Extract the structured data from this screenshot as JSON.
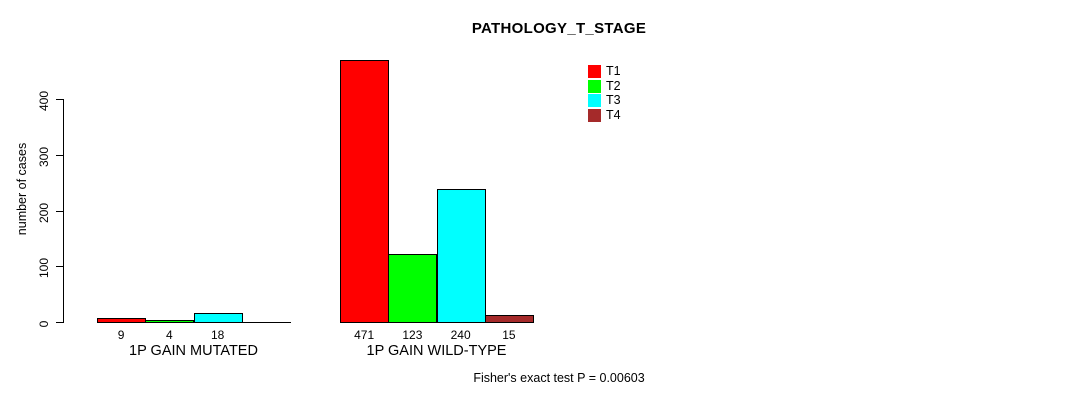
{
  "chart_data": {
    "type": "bar",
    "title": "PATHOLOGY_T_STAGE",
    "xlabel": "",
    "ylabel": "number of cases",
    "ylim": [
      0,
      400
    ],
    "yticks": [
      "0",
      "100",
      "200",
      "300",
      "400"
    ],
    "grid": false,
    "legend_position": "top-right",
    "categories": [
      "1P GAIN MUTATED",
      "1P GAIN WILD-TYPE"
    ],
    "series": [
      {
        "name": "T1",
        "color": "#FF0000",
        "values": [
          9,
          471
        ]
      },
      {
        "name": "T2",
        "color": "#00FF00",
        "values": [
          4,
          123
        ]
      },
      {
        "name": "T3",
        "color": "#00FFFF",
        "values": [
          18,
          240
        ]
      },
      {
        "name": "T4",
        "color": "#A52A2A",
        "values": [
          0,
          15
        ]
      }
    ],
    "visible_bar_value_labels": [
      [
        "9",
        "4",
        "18"
      ],
      [
        "471",
        "123",
        "240",
        "15"
      ]
    ],
    "bar_border_color": "#000000",
    "annotation": "Fisher's exact test P = 0.00603"
  }
}
